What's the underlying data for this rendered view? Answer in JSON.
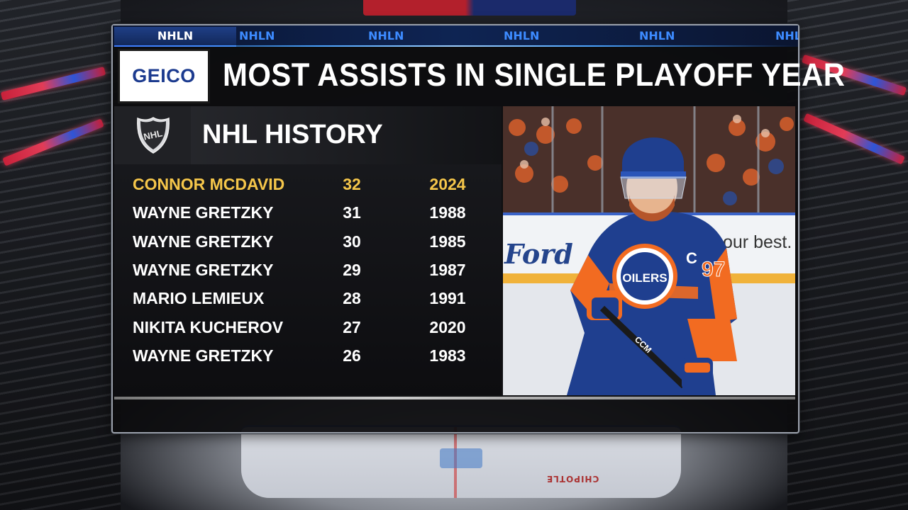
{
  "ticker": {
    "items": [
      "NHLN",
      "NHLN",
      "NHLN",
      "NHLN",
      "NHLN",
      "NHLN"
    ]
  },
  "sponsor": {
    "logo_text": "GEICO"
  },
  "title": "MOST ASSISTS IN SINGLE PLAYOFF YEAR",
  "section": {
    "title": "NHL HISTORY",
    "logo_icon": "nhl-shield-icon"
  },
  "rows": [
    {
      "name": "CONNOR MCDAVID",
      "assists": "32",
      "year": "2024",
      "highlight": true
    },
    {
      "name": "WAYNE GRETZKY",
      "assists": "31",
      "year": "1988",
      "highlight": false
    },
    {
      "name": "WAYNE GRETZKY",
      "assists": "30",
      "year": "1985",
      "highlight": false
    },
    {
      "name": "WAYNE GRETZKY",
      "assists": "29",
      "year": "1987",
      "highlight": false
    },
    {
      "name": "MARIO LEMIEUX",
      "assists": "28",
      "year": "1991",
      "highlight": false
    },
    {
      "name": "NIKITA KUCHEROV",
      "assists": "27",
      "year": "2020",
      "highlight": false
    },
    {
      "name": "WAYNE GRETZKY",
      "assists": "26",
      "year": "1983",
      "highlight": false
    }
  ],
  "photo": {
    "board_text_left": "Ford",
    "board_text_right": "our best.",
    "jersey_number": "97",
    "captain_letter": "C",
    "crest_text": "OILERS",
    "stick_text": "CCM"
  },
  "rink": {
    "adboard_text": "CHIPOTLE"
  },
  "colors": {
    "highlight": "#f5c64a",
    "ticker_text": "#3d8bff",
    "oilers_blue": "#1f3f8f",
    "oilers_orange": "#f26b21"
  }
}
